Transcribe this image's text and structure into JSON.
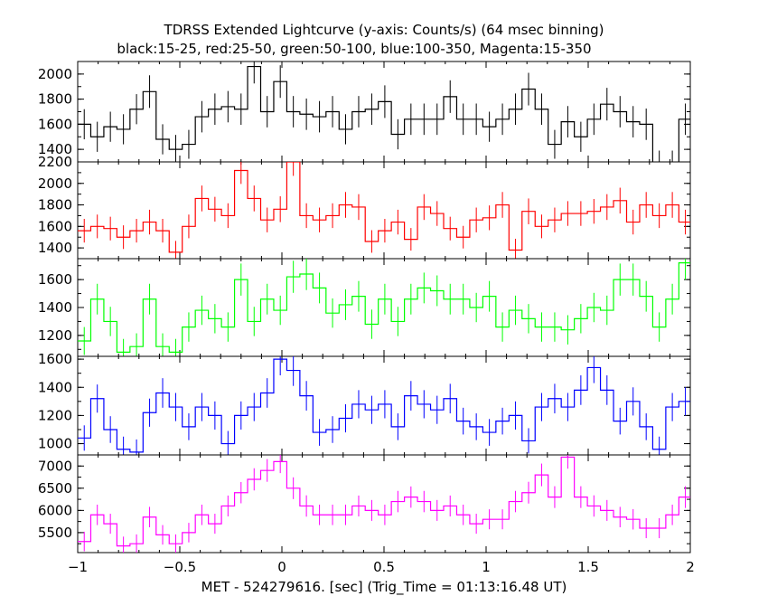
{
  "chart_data": {
    "type": "line",
    "title": "TDRSS Extended Lightcurve (y-axis: Counts/s) (64 msec binning)",
    "subtitle": "black:15-25, red:25-50, green:50-100, blue:100-350, Magenta:15-350",
    "xlabel": "MET - 524279616. [sec] (Trig_Time = 01:13:16.48 UT)",
    "xlim": [
      -1,
      2
    ],
    "xticks": [
      -1,
      -0.5,
      0,
      0.5,
      1,
      1.5,
      2
    ],
    "xtick_labels": [
      "−1",
      "−0.5",
      "0",
      "0.5",
      "1",
      "1.5",
      "2"
    ],
    "bin_width": 0.064,
    "x_start": -1.0,
    "panels": [
      {
        "name": "black:15-25",
        "color": "#000000",
        "ylim": [
          1300,
          2100
        ],
        "yticks": [
          1400,
          1600,
          1800,
          2000
        ],
        "values": [
          1600,
          1500,
          1580,
          1560,
          1720,
          1860,
          1480,
          1400,
          1440,
          1660,
          1720,
          1740,
          1720,
          2060,
          1700,
          1940,
          1700,
          1680,
          1660,
          1700,
          1560,
          1700,
          1720,
          1780,
          1520,
          1640,
          1640,
          1640,
          1820,
          1640,
          1640,
          1580,
          1640,
          1720,
          1880,
          1720,
          1440,
          1620,
          1500,
          1640,
          1760,
          1700,
          1620,
          1600,
          1280,
          1280,
          1640,
          1640
        ],
        "errors": [
          120,
          120,
          120,
          120,
          120,
          130,
          120,
          115,
          115,
          125,
          125,
          125,
          125,
          135,
          125,
          130,
          125,
          125,
          125,
          125,
          120,
          125,
          125,
          130,
          120,
          125,
          125,
          125,
          130,
          125,
          125,
          120,
          125,
          125,
          130,
          125,
          115,
          125,
          120,
          125,
          130,
          125,
          125,
          125,
          110,
          110,
          125,
          125
        ]
      },
      {
        "name": "red:25-50",
        "color": "#ff0000",
        "ylim": [
          1300,
          2200
        ],
        "yticks": [
          1400,
          1600,
          1800,
          2000,
          2200
        ],
        "values": [
          1560,
          1600,
          1580,
          1500,
          1560,
          1640,
          1560,
          1360,
          1600,
          1860,
          1760,
          1700,
          2120,
          1860,
          1660,
          1760,
          2200,
          1700,
          1660,
          1700,
          1800,
          1780,
          1460,
          1560,
          1640,
          1480,
          1780,
          1720,
          1580,
          1500,
          1660,
          1680,
          1800,
          1380,
          1740,
          1600,
          1660,
          1720,
          1720,
          1740,
          1780,
          1840,
          1640,
          1800,
          1700,
          1800,
          1640,
          1680
        ],
        "errors": [
          110,
          110,
          110,
          110,
          110,
          115,
          110,
          105,
          110,
          120,
          115,
          115,
          125,
          120,
          115,
          120,
          130,
          115,
          115,
          115,
          120,
          120,
          105,
          110,
          115,
          105,
          120,
          115,
          110,
          105,
          115,
          115,
          120,
          105,
          120,
          110,
          115,
          115,
          115,
          115,
          120,
          120,
          115,
          120,
          115,
          120,
          115,
          115
        ]
      },
      {
        "name": "green:50-100",
        "color": "#00ff00",
        "ylim": [
          1050,
          1750
        ],
        "yticks": [
          1200,
          1400,
          1600
        ],
        "values": [
          1160,
          1460,
          1300,
          1080,
          1120,
          1460,
          1120,
          1080,
          1260,
          1380,
          1320,
          1260,
          1600,
          1300,
          1460,
          1380,
          1620,
          1640,
          1540,
          1360,
          1420,
          1480,
          1280,
          1460,
          1300,
          1460,
          1540,
          1520,
          1460,
          1460,
          1400,
          1480,
          1260,
          1380,
          1320,
          1260,
          1260,
          1240,
          1320,
          1400,
          1380,
          1600,
          1600,
          1480,
          1260,
          1460,
          1720,
          1520
        ],
        "errors": [
          100,
          110,
          105,
          95,
          95,
          110,
          95,
          95,
          105,
          105,
          105,
          105,
          115,
          105,
          110,
          105,
          115,
          115,
          110,
          105,
          110,
          110,
          105,
          110,
          105,
          110,
          110,
          110,
          110,
          110,
          105,
          110,
          105,
          105,
          105,
          105,
          105,
          105,
          105,
          105,
          105,
          115,
          115,
          110,
          105,
          110,
          120,
          110
        ]
      },
      {
        "name": "blue:100-350",
        "color": "#0000ff",
        "ylim": [
          920,
          1620
        ],
        "yticks": [
          1000,
          1200,
          1400,
          1600
        ],
        "values": [
          1040,
          1320,
          1100,
          960,
          940,
          1220,
          1360,
          1260,
          1120,
          1260,
          1200,
          1000,
          1200,
          1260,
          1360,
          1600,
          1520,
          1340,
          1080,
          1100,
          1180,
          1280,
          1240,
          1280,
          1120,
          1340,
          1280,
          1240,
          1320,
          1160,
          1120,
          1080,
          1160,
          1200,
          1020,
          1260,
          1320,
          1260,
          1380,
          1540,
          1380,
          1160,
          1300,
          1120,
          960,
          1260,
          1300,
          1280
        ],
        "errors": [
          90,
          100,
          95,
          90,
          90,
          100,
          105,
          100,
          95,
          100,
          100,
          90,
          100,
          100,
          105,
          115,
          110,
          105,
          95,
          95,
          100,
          100,
          100,
          100,
          95,
          105,
          100,
          100,
          105,
          95,
          95,
          95,
          95,
          100,
          90,
          100,
          105,
          100,
          105,
          110,
          105,
          95,
          100,
          95,
          90,
          100,
          100,
          100
        ]
      },
      {
        "name": "Magenta:15-350",
        "color": "#ff00ff",
        "ylim": [
          5050,
          7250
        ],
        "yticks": [
          5500,
          6000,
          6500,
          7000
        ],
        "values": [
          5300,
          5900,
          5700,
          5200,
          5250,
          5850,
          5450,
          5250,
          5500,
          5900,
          5700,
          6100,
          6400,
          6700,
          6900,
          7100,
          6500,
          6100,
          5900,
          5900,
          5900,
          6100,
          6000,
          5900,
          6200,
          6300,
          6200,
          6000,
          6100,
          5900,
          5700,
          5800,
          5800,
          6200,
          6400,
          6800,
          6300,
          7200,
          6300,
          6100,
          6000,
          5850,
          5800,
          5600,
          5600,
          5900,
          6300,
          6200
        ],
        "errors": [
          220,
          230,
          225,
          210,
          210,
          230,
          220,
          210,
          220,
          230,
          225,
          235,
          240,
          250,
          255,
          260,
          245,
          240,
          230,
          230,
          230,
          235,
          235,
          230,
          240,
          240,
          240,
          235,
          235,
          230,
          225,
          225,
          225,
          240,
          245,
          255,
          245,
          260,
          245,
          240,
          235,
          230,
          230,
          225,
          225,
          230,
          245,
          240
        ]
      }
    ]
  }
}
